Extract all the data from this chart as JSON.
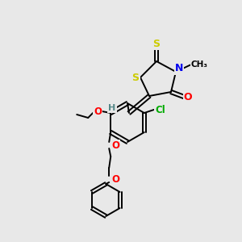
{
  "bg_color": "#e8e8e8",
  "bond_color": "#000000",
  "atom_colors": {
    "S": "#cccc00",
    "N": "#0000ee",
    "O": "#ff0000",
    "Cl": "#00aa00",
    "H": "#558888",
    "C": "#000000"
  },
  "figsize": [
    3.0,
    3.0
  ],
  "dpi": 100
}
